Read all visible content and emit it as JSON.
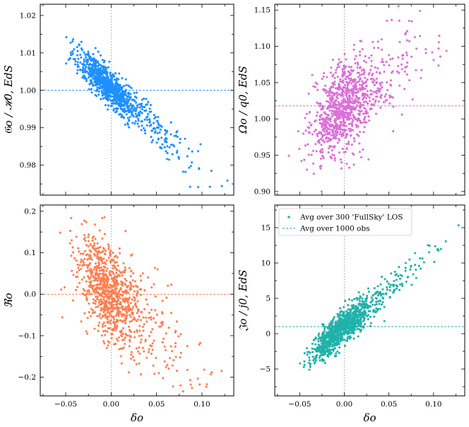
{
  "chart_data": [
    {
      "type": "scatter",
      "ylabel": "𝔊o / ℋ0, EdS",
      "xlabel": "",
      "xlim": [
        -0.078,
        0.135
      ],
      "ylim": [
        0.972,
        1.023
      ],
      "xticks": [
        -0.05,
        0.0,
        0.05,
        0.1
      ],
      "xtick_labels": [
        "",
        "",
        "",
        ""
      ],
      "yticks": [
        0.98,
        0.99,
        1.0,
        1.01,
        1.02
      ],
      "ytick_labels": [
        "0.98",
        "0.99",
        "1.00",
        "1.01",
        "1.02"
      ],
      "color": "#1e90ff",
      "hline": 1.0,
      "vline": 0.0,
      "trend": {
        "slope": -0.215,
        "intercept": 1.0005,
        "spread": 0.0023,
        "skew": 0.8
      },
      "x_range": [
        -0.068,
        0.128
      ],
      "n_points": 1000,
      "seed": 11
    },
    {
      "type": "scatter",
      "ylabel": "Ωo / q0, EdS",
      "xlabel": "",
      "xlim": [
        -0.078,
        0.135
      ],
      "ylim": [
        0.895,
        1.158
      ],
      "xticks": [
        -0.05,
        0.0,
        0.05,
        0.1
      ],
      "xtick_labels": [
        "",
        "",
        "",
        ""
      ],
      "yticks": [
        0.9,
        0.95,
        1.0,
        1.05,
        1.1,
        1.15
      ],
      "ytick_labels": [
        "0.90",
        "0.95",
        "1.00",
        "1.05",
        "1.10",
        "1.15"
      ],
      "color": "#da70d6",
      "hline": 1.018,
      "vline": 0.0,
      "trend": {
        "slope": 0.9,
        "intercept": 1.015,
        "spread": 0.03,
        "skew": 0.0
      },
      "x_range": [
        -0.068,
        0.128
      ],
      "n_points": 1000,
      "seed": 23
    },
    {
      "type": "scatter",
      "ylabel": "ℜo",
      "xlabel": "δo",
      "xlim": [
        -0.078,
        0.135
      ],
      "ylim": [
        -0.245,
        0.215
      ],
      "xticks": [
        -0.05,
        0.0,
        0.05,
        0.1
      ],
      "xtick_labels": [
        "−0.05",
        "0.00",
        "0.05",
        "0.10"
      ],
      "yticks": [
        -0.2,
        -0.1,
        0.0,
        0.1,
        0.2
      ],
      "ytick_labels": [
        "−0.2",
        "−0.1",
        "0.0",
        "0.1",
        "0.2"
      ],
      "color": "#ff7f50",
      "hline": 0.0,
      "vline": 0.0,
      "trend": {
        "slope": -1.7,
        "intercept": 0.0,
        "spread": 0.055,
        "skew": 0.0
      },
      "x_range": [
        -0.068,
        0.128
      ],
      "n_points": 1000,
      "seed": 37
    },
    {
      "type": "scatter",
      "ylabel": "𝔍o / j0, EdS",
      "xlabel": "δo",
      "xlim": [
        -0.078,
        0.135
      ],
      "ylim": [
        -8.8,
        18.2
      ],
      "xticks": [
        -0.05,
        0.0,
        0.05,
        0.1
      ],
      "xtick_labels": [
        "−0.05",
        "0.00",
        "0.05",
        "0.10"
      ],
      "yticks": [
        -5,
        0,
        5,
        10,
        15
      ],
      "ytick_labels": [
        "−5",
        "0",
        "5",
        "10",
        "15"
      ],
      "color": "#20b2aa",
      "hline": 1.0,
      "vline": 0.0,
      "trend": {
        "slope": 105,
        "intercept": 1.0,
        "spread": 1.2,
        "skew": 0.0
      },
      "x_range": [
        -0.068,
        0.128
      ],
      "n_points": 1000,
      "seed": 53,
      "legend": {
        "position": "top-left",
        "entries": [
          "Avg over 300 'FullSky' LOS",
          "Avg over 1000 obs"
        ]
      }
    }
  ]
}
